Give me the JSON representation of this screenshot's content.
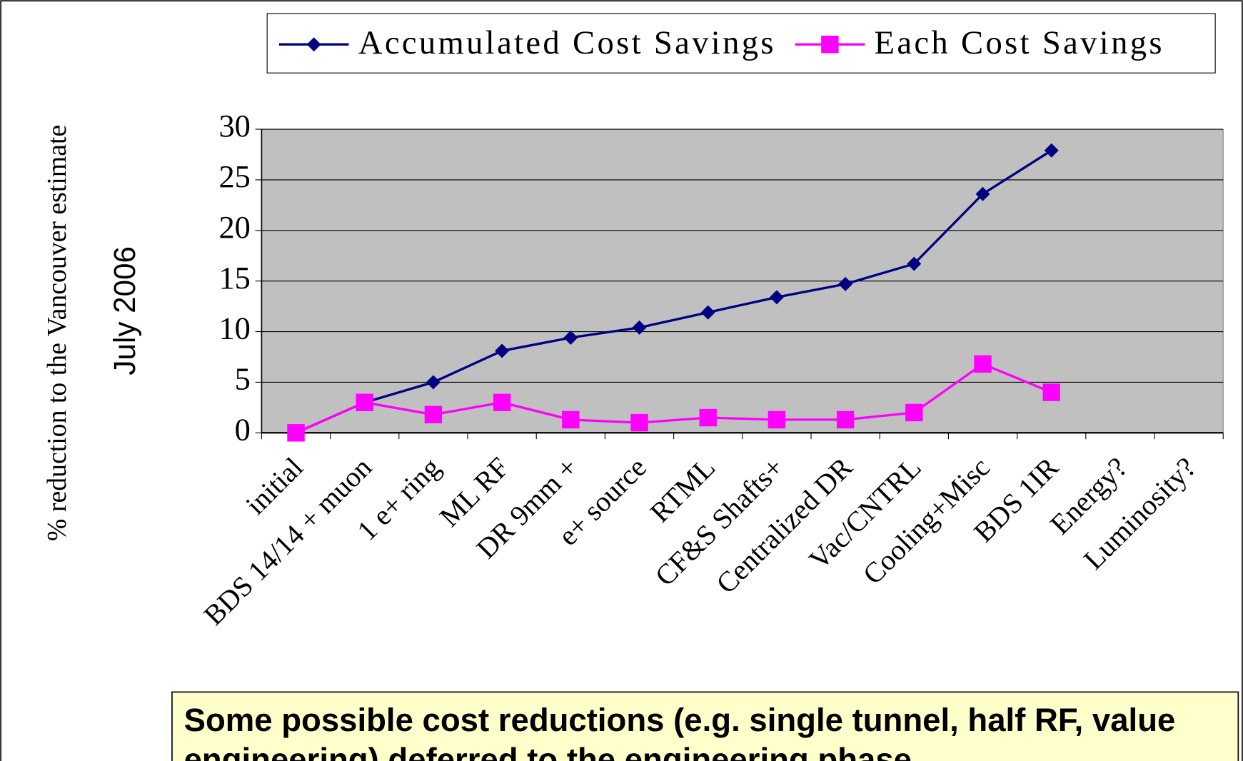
{
  "chart_data": {
    "type": "line",
    "y_label": "% reduction to the Vancouver estimate",
    "y_label_2": "July 2006",
    "categories": [
      "initial",
      "BDS 14/14 + muon",
      "1 e+ ring",
      "ML RF",
      "DR 9mm +",
      "e+ source",
      "RTML",
      "CF&S Shafts+",
      "Centralized DR",
      "Vac/CNTRL",
      "Cooling+Misc",
      "BDS 1IR",
      "Energy?",
      "Luminosity?"
    ],
    "series": [
      {
        "name": "Accumulated Cost Savings",
        "color": "#000080",
        "marker": "diamond",
        "values": [
          0,
          3,
          5,
          8.1,
          9.4,
          10.4,
          11.9,
          13.4,
          14.7,
          16.7,
          23.6,
          27.9,
          null,
          null
        ]
      },
      {
        "name": "Each Cost Savings",
        "color": "#ff00ff",
        "marker": "square",
        "values": [
          0,
          3,
          1.8,
          3,
          1.3,
          1,
          1.5,
          1.3,
          1.3,
          2,
          6.8,
          4,
          null,
          null
        ]
      }
    ],
    "ylim": [
      0,
      30
    ],
    "yticks": [
      0,
      5,
      10,
      15,
      20,
      25,
      30
    ],
    "grid": true,
    "legend": "top",
    "annotation": "Some possible cost reductions (e.g. single tunnel, half RF, value engineering) deferred to the engineering phase"
  }
}
